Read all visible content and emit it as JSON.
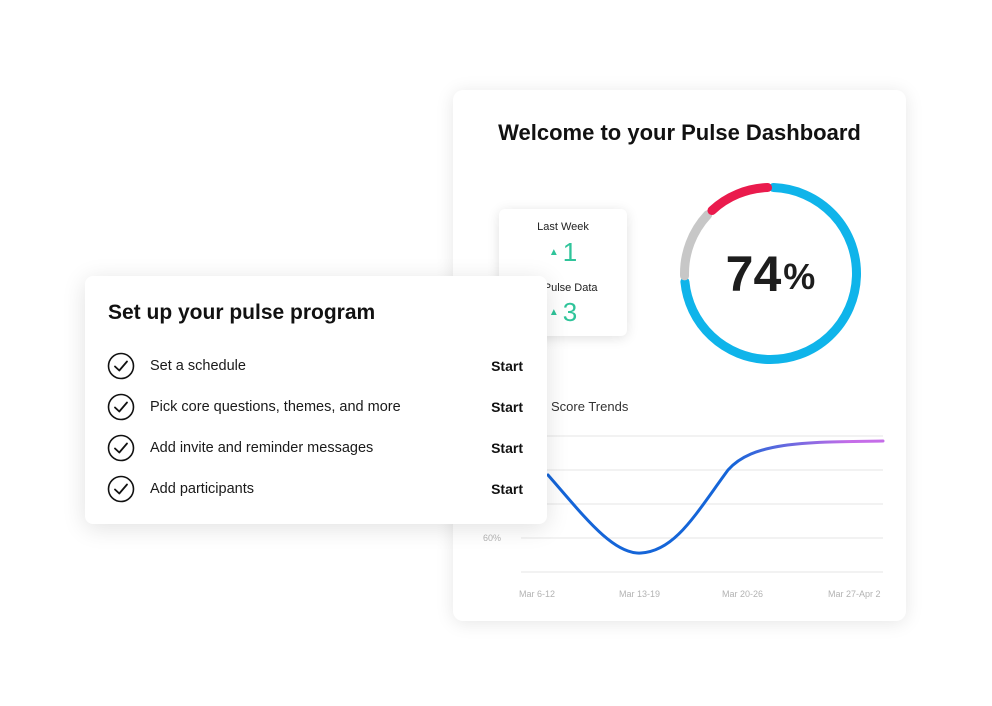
{
  "dashboard": {
    "title": "Welcome to your Pulse Dashboard",
    "stats": [
      {
        "label": "Last Week",
        "value": "1",
        "trend": "up"
      },
      {
        "label": "All Pulse Data",
        "value": "3",
        "trend": "up"
      }
    ],
    "score": {
      "value": "74",
      "unit": "%",
      "fraction": 0.74
    },
    "ring_colors": {
      "main": "#0fb4ea",
      "negative": "#ea1b4d",
      "neutral": "#c7c7c7"
    },
    "trend_title": "Score Trends",
    "trend_chart": {
      "y_tick": "60%",
      "x_ticks": [
        "Mar 6-12",
        "Mar 13-19",
        "Mar 20-26",
        "Mar 27-Apr 2"
      ],
      "line_colors": {
        "start": "#1565d8",
        "end": "#c56de8"
      }
    }
  },
  "setup": {
    "title": "Set up your pulse program",
    "tasks": [
      {
        "label": "Set a schedule",
        "action": "Start"
      },
      {
        "label": "Pick core questions, themes, and more",
        "action": "Start"
      },
      {
        "label": "Add invite and reminder messages",
        "action": "Start"
      },
      {
        "label": "Add participants",
        "action": "Start"
      }
    ],
    "icon": "check-circle-icon"
  }
}
